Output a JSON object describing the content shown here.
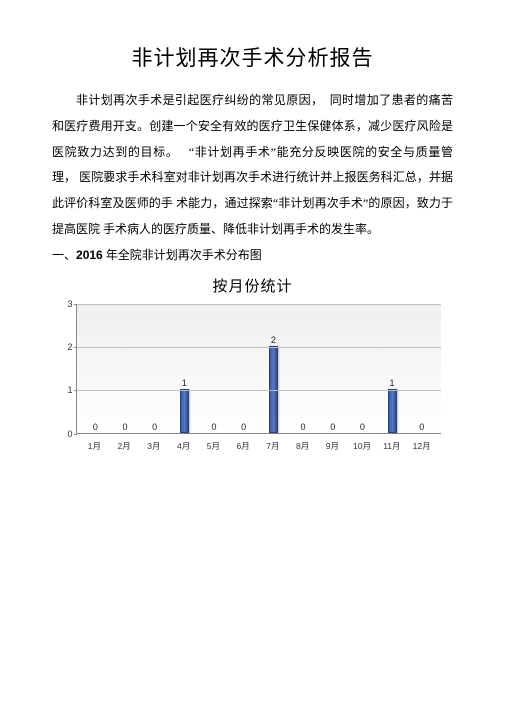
{
  "title": "非计划再次手术分析报告",
  "paragraph": "非计划再次手术是引起医疗纠纷的常见原因，　同时增加了患者的痛苦和医疗费用开支。创建一个安全有效的医疗卫生保健体系，减少医疗风险是医院致力达到的目标。　 “非计划再手术”能充分反映医院的安全与质量管理， 医院要求手术科室对非计划再次手术进行统计并上报医务科汇总，并据此评价科室及医师的手 术能力，通过探索“非计划再次手术”的原因，致力于提高医院 手术病人的医疗质量、降低非计划再手术的发生率。",
  "section_prefix": "一、",
  "section_year": "2016",
  "section_rest": " 年全院非计划再次手术分布图",
  "chart": {
    "title": "按月份统计",
    "ylim": [
      0,
      3
    ],
    "yticks": [
      0,
      1,
      2,
      3
    ],
    "categories": [
      "1月",
      "2月",
      "3月",
      "4月",
      "5月",
      "6月",
      "7月",
      "8月",
      "9月",
      "10月",
      "11月",
      "12月"
    ],
    "values": [
      0,
      0,
      0,
      1,
      0,
      0,
      2,
      0,
      0,
      0,
      1,
      0
    ],
    "bar_color": "#4165ae",
    "bg_top": "#f0efef",
    "bg_bottom": "#ffffff",
    "grid_color": "#bfbfbf",
    "axis_color": "#888888"
  }
}
